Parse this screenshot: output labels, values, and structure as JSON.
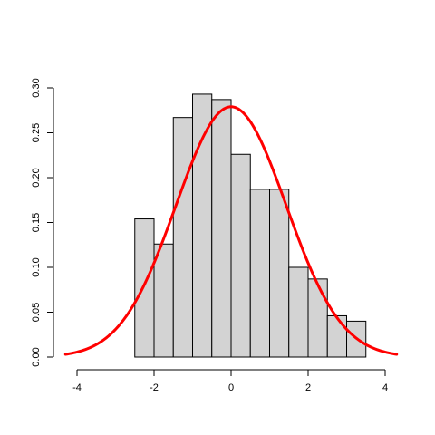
{
  "chart_data": {
    "type": "bar",
    "title": "",
    "xlabel": "",
    "ylabel": "",
    "xlim": [
      -4.3,
      4.6
    ],
    "ylim": [
      0,
      0.3
    ],
    "grid": false,
    "bin_edges": [
      -2.5,
      -2.0,
      -1.5,
      -1.0,
      -0.5,
      0.0,
      0.5,
      1.0,
      1.5,
      2.0,
      2.5,
      3.0,
      3.5
    ],
    "values": [
      0.154,
      0.126,
      0.267,
      0.293,
      0.287,
      0.226,
      0.187,
      0.187,
      0.1,
      0.087,
      0.046,
      0.04
    ],
    "x_ticks": [
      "-4",
      "-2",
      "0",
      "2",
      "4"
    ],
    "y_ticks": [
      "0.00",
      "0.05",
      "0.10",
      "0.15",
      "0.20",
      "0.25",
      "0.30"
    ],
    "curve": {
      "mean": 0.0,
      "sd": 1.43,
      "x_range": [
        -4.3,
        4.3
      ]
    },
    "colors": {
      "bar_fill": "#d3d3d3",
      "bar_stroke": "#000000",
      "curve": "#ff0000",
      "axis": "#000000"
    }
  }
}
